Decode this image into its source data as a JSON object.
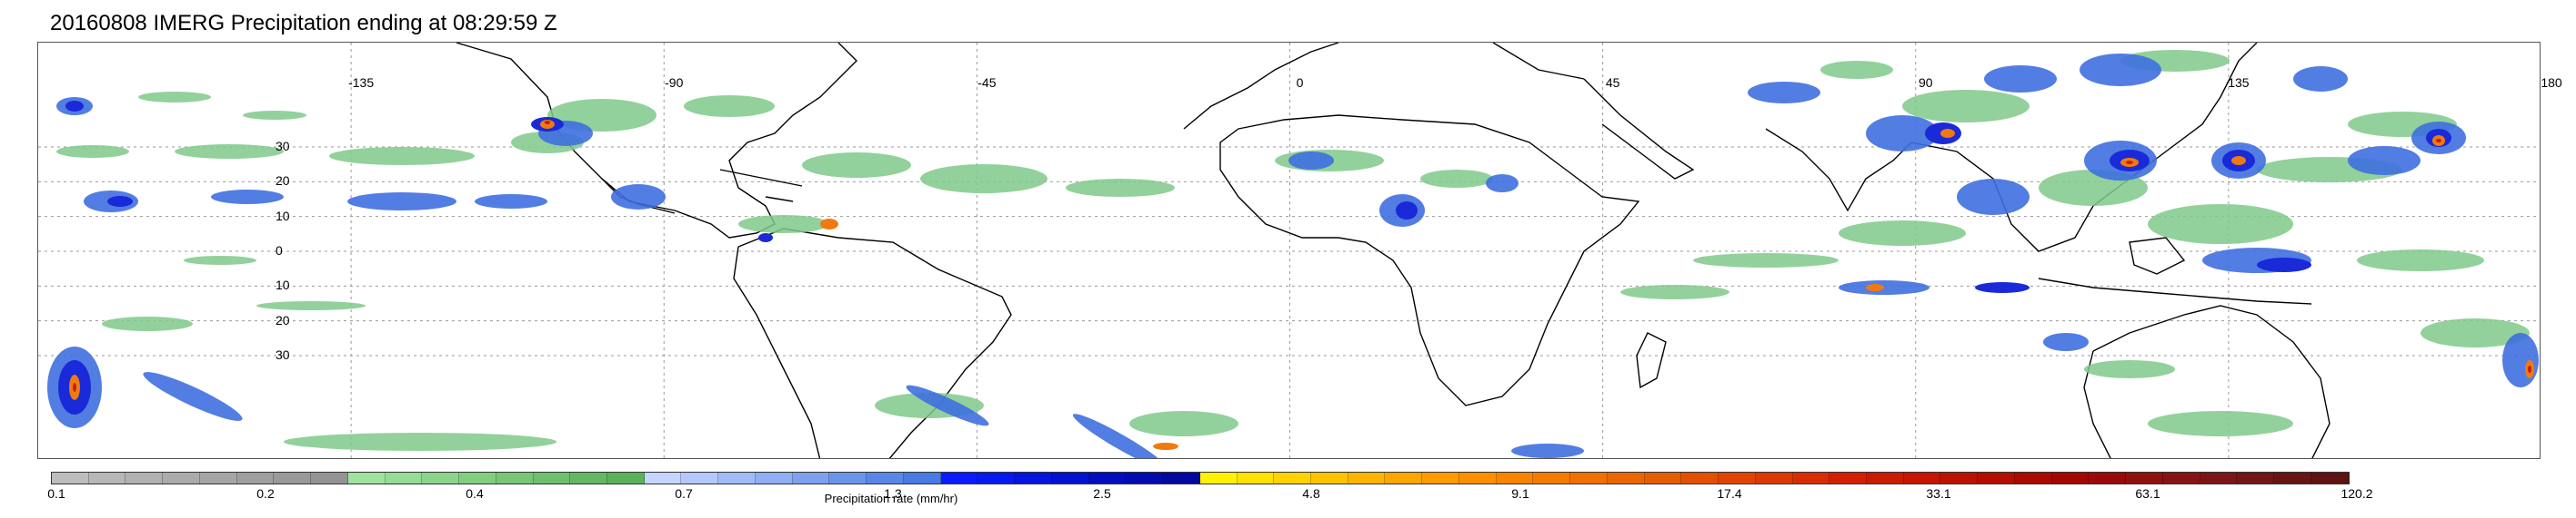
{
  "title": "20160808 IMERG Precipitation ending at 08:29:59 Z",
  "map": {
    "projection": "equirectangular",
    "lon_range": [
      -180,
      180
    ],
    "lat_range": [
      -60,
      60
    ],
    "gridlines": true,
    "lat_ticks": [
      "30",
      "20",
      "10",
      "0",
      "10",
      "20",
      "30"
    ],
    "lat_tick_values": [
      30,
      20,
      10,
      0,
      -10,
      -20,
      -30
    ],
    "lon_ticks": [
      "-135",
      "-90",
      "-45",
      "0",
      "45",
      "90",
      "135",
      "180"
    ],
    "lon_tick_values": [
      -135,
      -90,
      -45,
      0,
      45,
      90,
      135,
      180
    ]
  },
  "colorbar": {
    "label": "Precipitation rate (mm/hr)",
    "tick_labels": [
      "0.1",
      "0.2",
      "0.4",
      "0.7",
      "1.3",
      "2.5",
      "4.8",
      "9.1",
      "17.4",
      "33.1",
      "63.1",
      "120.2"
    ],
    "swatch_colors": [
      "#bdbdbd",
      "#b7b7b7",
      "#b1b1b1",
      "#ababab",
      "#a5a5a5",
      "#9f9f9f",
      "#999999",
      "#939393",
      "#9fe39f",
      "#95dc95",
      "#8bd58b",
      "#81ce81",
      "#77c777",
      "#6dc06d",
      "#63b963",
      "#59b259",
      "#c5d5ff",
      "#b3c8fb",
      "#a1bbf7",
      "#8faef3",
      "#7da1ef",
      "#6b94eb",
      "#5987e7",
      "#477ae3",
      "#0a1cff",
      "#0818f0",
      "#0614e0",
      "#0511d0",
      "#040ec0",
      "#030bb0",
      "#0208a0",
      "#fff200",
      "#ffe200",
      "#ffd200",
      "#ffc300",
      "#ffb400",
      "#ffa500",
      "#ff9a00",
      "#fd8f00",
      "#fa8400",
      "#f57a00",
      "#f07000",
      "#eb6600",
      "#e65c00",
      "#e35000",
      "#e04400",
      "#dc3800",
      "#d92c00",
      "#d52000",
      "#cc1a00",
      "#c41600",
      "#bc1200",
      "#b40e00",
      "#ac0a00",
      "#a40600",
      "#9a0a0a",
      "#901010",
      "#861414",
      "#7c1616",
      "#721616",
      "#681414",
      "#5e1212"
    ]
  },
  "colors": {
    "light_precip": "#7fc98a",
    "moderate_precip": "#3f6fe0",
    "heavy_precip": "#1a2ad8",
    "intense_precip": "#f07a10",
    "extreme_precip": "#c81e0a",
    "coastline": "#000000",
    "gridline": "#9a9a9a"
  }
}
